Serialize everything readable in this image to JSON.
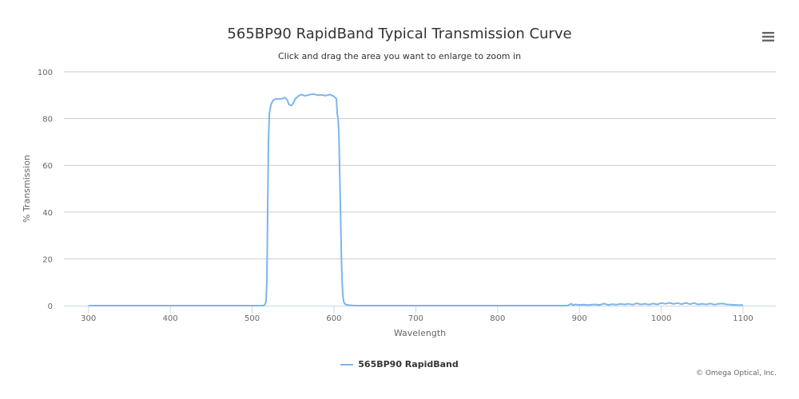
{
  "chart_data": {
    "type": "line",
    "title": "565BP90 RapidBand Typical Transmission Curve",
    "subtitle": "Click and drag the area you want to enlarge to zoom in",
    "xlabel": "Wavelength",
    "ylabel": "% Transmission",
    "xlim": [
      270,
      1140
    ],
    "ylim": [
      0,
      100
    ],
    "x_ticks": [
      "300",
      "400",
      "500",
      "600",
      "700",
      "800",
      "900",
      "1000",
      "1100"
    ],
    "y_ticks": [
      "0",
      "20",
      "40",
      "60",
      "80",
      "100"
    ],
    "grid": true,
    "legend_position": "bottom-center",
    "series": [
      {
        "name": "565BP90 RapidBand",
        "color": "#7cb5ec",
        "points": [
          [
            300,
            0
          ],
          [
            400,
            0
          ],
          [
            500,
            0
          ],
          [
            514,
            0
          ],
          [
            516,
            0.6
          ],
          [
            517,
            2
          ],
          [
            518,
            10
          ],
          [
            519,
            40
          ],
          [
            520,
            70
          ],
          [
            521,
            82
          ],
          [
            523,
            86
          ],
          [
            526,
            88
          ],
          [
            530,
            88.5
          ],
          [
            535,
            88.3
          ],
          [
            540,
            89
          ],
          [
            543,
            88
          ],
          [
            545,
            86
          ],
          [
            548,
            85.6
          ],
          [
            550,
            86.5
          ],
          [
            553,
            88.5
          ],
          [
            556,
            89.5
          ],
          [
            560,
            90.3
          ],
          [
            565,
            89.7
          ],
          [
            570,
            90.2
          ],
          [
            575,
            90.5
          ],
          [
            580,
            90
          ],
          [
            585,
            90.1
          ],
          [
            590,
            89.8
          ],
          [
            595,
            90.3
          ],
          [
            600,
            89.5
          ],
          [
            603,
            88.5
          ],
          [
            604,
            82
          ],
          [
            605,
            80
          ],
          [
            606,
            74
          ],
          [
            607,
            58
          ],
          [
            608,
            40
          ],
          [
            609,
            22
          ],
          [
            610,
            10
          ],
          [
            611,
            4
          ],
          [
            612,
            1.5
          ],
          [
            614,
            0.5
          ],
          [
            618,
            0.2
          ],
          [
            625,
            0
          ],
          [
            700,
            0
          ],
          [
            800,
            0
          ],
          [
            885,
            0
          ],
          [
            888,
            0.4
          ],
          [
            890,
            0.9
          ],
          [
            892,
            0.2
          ],
          [
            895,
            0.5
          ],
          [
            900,
            0.3
          ],
          [
            905,
            0.4
          ],
          [
            910,
            0.2
          ],
          [
            918,
            0.5
          ],
          [
            925,
            0.3
          ],
          [
            930,
            0.9
          ],
          [
            935,
            0.3
          ],
          [
            940,
            0.6
          ],
          [
            945,
            0.4
          ],
          [
            950,
            0.7
          ],
          [
            955,
            0.5
          ],
          [
            960,
            0.8
          ],
          [
            965,
            0.4
          ],
          [
            970,
            1.0
          ],
          [
            975,
            0.5
          ],
          [
            980,
            0.8
          ],
          [
            985,
            0.4
          ],
          [
            990,
            0.9
          ],
          [
            995,
            0.5
          ],
          [
            1000,
            1.1
          ],
          [
            1005,
            0.8
          ],
          [
            1010,
            1.2
          ],
          [
            1015,
            0.7
          ],
          [
            1020,
            1.1
          ],
          [
            1025,
            0.6
          ],
          [
            1030,
            1.2
          ],
          [
            1035,
            0.6
          ],
          [
            1040,
            1.1
          ],
          [
            1045,
            0.5
          ],
          [
            1050,
            0.8
          ],
          [
            1055,
            0.5
          ],
          [
            1060,
            0.9
          ],
          [
            1065,
            0.4
          ],
          [
            1070,
            0.8
          ],
          [
            1075,
            0.9
          ],
          [
            1080,
            0.5
          ],
          [
            1085,
            0.4
          ],
          [
            1090,
            0.3
          ],
          [
            1095,
            0.2
          ],
          [
            1100,
            0.2
          ]
        ]
      }
    ]
  },
  "menu_icon": "hamburger-menu-icon",
  "credit": "© Omega Optical, Inc."
}
